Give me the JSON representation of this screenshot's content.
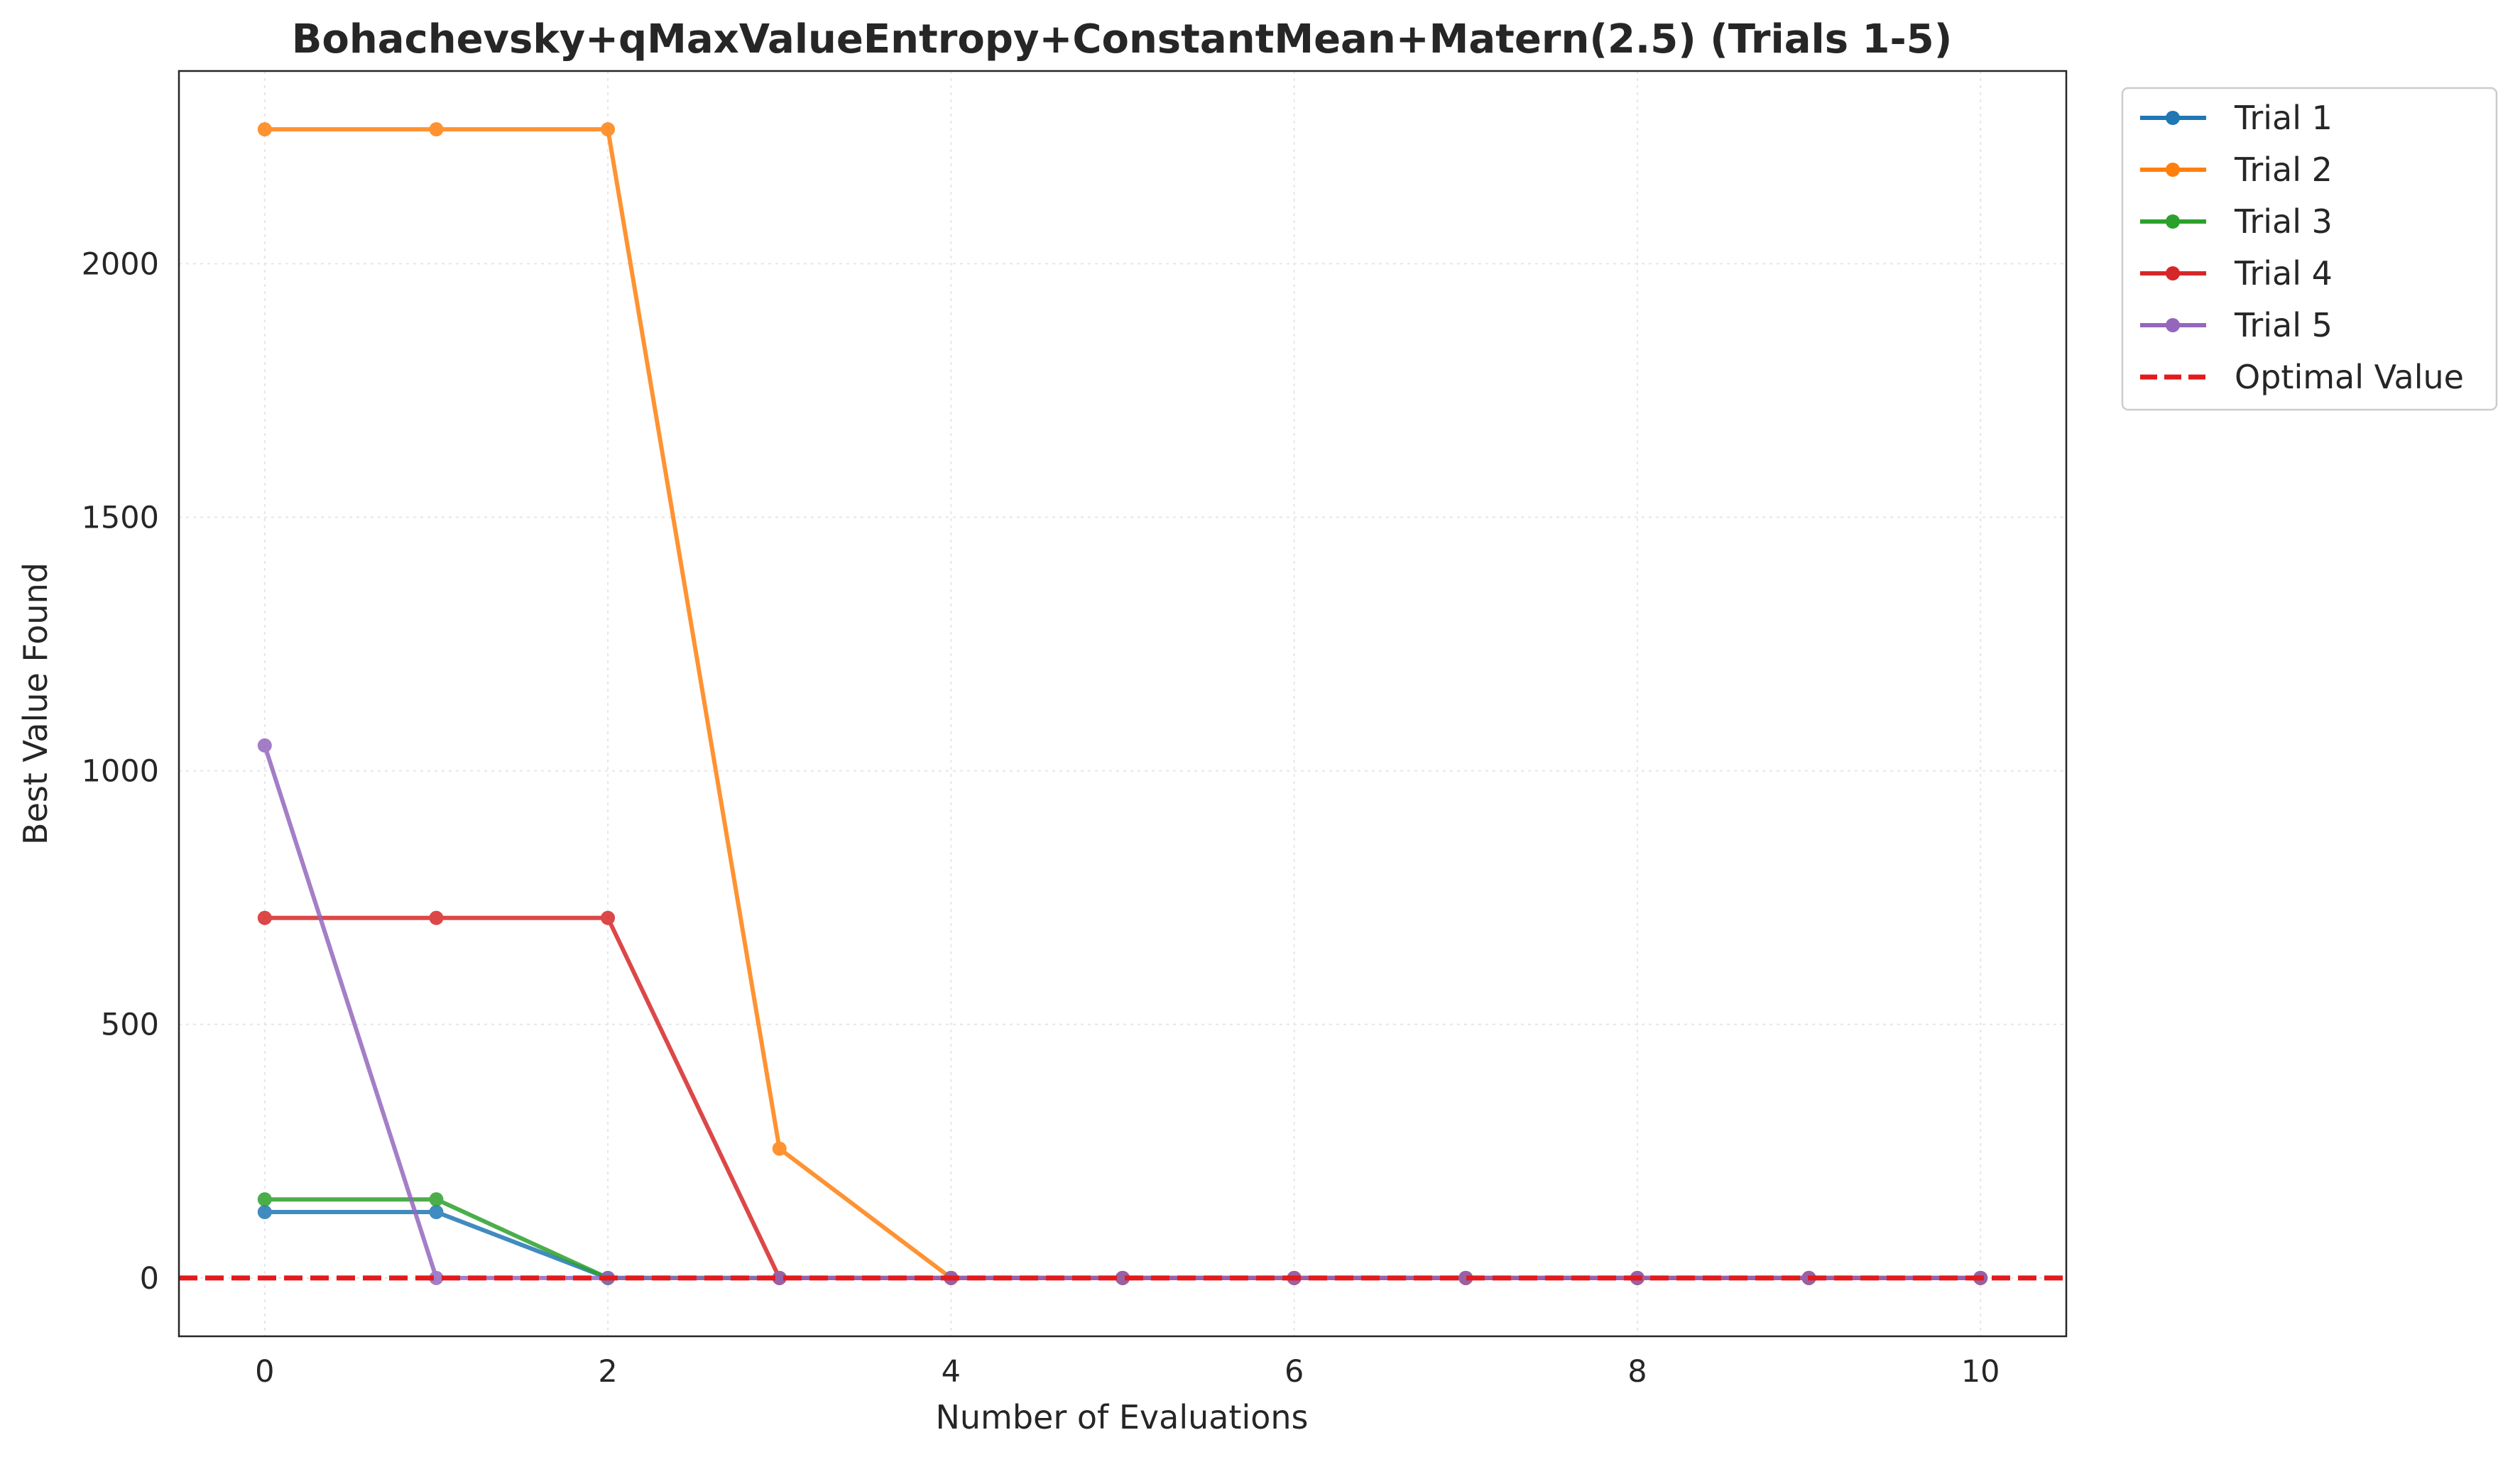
{
  "chart_data": {
    "type": "line",
    "title": "Bohachevsky+qMaxValueEntropy+ConstantMean+Matern(2.5) (Trials 1-5)",
    "xlabel": "Number of Evaluations",
    "ylabel": "Best Value Found",
    "xlim": [
      -0.5,
      10.5
    ],
    "ylim": [
      -115,
      2380
    ],
    "xticks": [
      0,
      2,
      4,
      6,
      8,
      10
    ],
    "yticks": [
      0,
      500,
      1000,
      1500,
      2000
    ],
    "grid": true,
    "legend_position": "outside-top-right",
    "x": [
      0,
      1,
      2,
      3,
      4,
      5,
      6,
      7,
      8,
      9,
      10
    ],
    "series": [
      {
        "name": "Trial 1",
        "color": "#1f77b4",
        "values": [
          130,
          130,
          0,
          0,
          0,
          0,
          0,
          0,
          0,
          0,
          0
        ]
      },
      {
        "name": "Trial 2",
        "color": "#ff7f0e",
        "values": [
          2265,
          2265,
          2265,
          255,
          0,
          0,
          0,
          0,
          0,
          0,
          0
        ]
      },
      {
        "name": "Trial 3",
        "color": "#2ca02c",
        "values": [
          155,
          155,
          0,
          0,
          0,
          0,
          0,
          0,
          0,
          0,
          0
        ]
      },
      {
        "name": "Trial 4",
        "color": "#d62728",
        "values": [
          710,
          710,
          710,
          0,
          0,
          0,
          0,
          0,
          0,
          0,
          0
        ]
      },
      {
        "name": "Trial 5",
        "color": "#9467bd",
        "values": [
          1050,
          0,
          0,
          0,
          0,
          0,
          0,
          0,
          0,
          0,
          0
        ]
      }
    ],
    "reference_line": {
      "name": "Optimal Value",
      "value": 0,
      "color": "#e31a1c",
      "style": "dashed"
    }
  }
}
